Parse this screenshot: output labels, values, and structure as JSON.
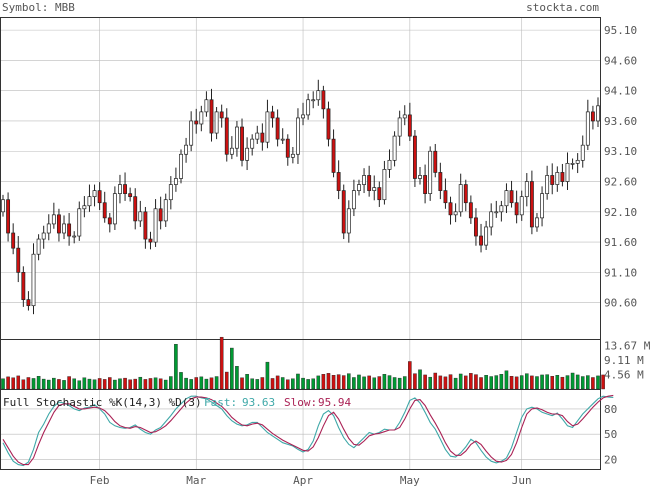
{
  "header": {
    "symbol_label": "Symbol: MBB",
    "site": "stockta.com"
  },
  "colors": {
    "up": "#ffffff",
    "down": "#cc1111",
    "vol_up": "#009933",
    "vol_down": "#cc1111",
    "grid": "#bbbbbb",
    "frame": "#333333",
    "text": "#555555",
    "fast": "#3fa8a8",
    "slow": "#aa2255"
  },
  "chart_data": [
    {
      "type": "candlestick",
      "title": "",
      "ylim": [
        90.0,
        95.3
      ],
      "y_ticks": [
        "95.10",
        "94.60",
        "94.10",
        "93.60",
        "93.10",
        "92.60",
        "92.10",
        "91.60",
        "91.10",
        "90.60"
      ],
      "x_labels": [
        "Feb",
        "Mar",
        "Apr",
        "May",
        "Jun"
      ],
      "x_label_index": [
        19,
        38,
        59,
        80,
        102
      ],
      "start_price": 92.1,
      "closes": [
        92.3,
        91.75,
        91.5,
        91.1,
        90.65,
        90.55,
        91.4,
        91.65,
        91.75,
        91.9,
        92.05,
        91.75,
        91.9,
        91.7,
        91.7,
        92.15,
        92.2,
        92.35,
        92.45,
        92.25,
        92.0,
        91.9,
        92.4,
        92.55,
        92.4,
        92.35,
        91.95,
        92.1,
        91.65,
        91.6,
        92.15,
        91.95,
        92.3,
        92.55,
        92.65,
        93.05,
        93.2,
        93.6,
        93.55,
        93.75,
        93.95,
        93.4,
        93.75,
        93.65,
        93.05,
        93.15,
        93.5,
        92.95,
        93.15,
        93.3,
        93.4,
        93.25,
        93.75,
        93.65,
        93.3,
        93.3,
        93.0,
        93.05,
        93.65,
        93.7,
        93.95,
        93.95,
        94.1,
        93.8,
        93.3,
        92.75,
        92.45,
        91.75,
        92.15,
        92.45,
        92.55,
        92.7,
        92.45,
        92.5,
        92.3,
        92.8,
        92.95,
        93.35,
        93.65,
        93.7,
        93.35,
        92.65,
        92.7,
        92.4,
        93.1,
        92.75,
        92.45,
        92.25,
        92.05,
        92.1,
        92.55,
        92.25,
        92.0,
        91.7,
        91.55,
        91.85,
        92.1,
        92.1,
        92.2,
        92.45,
        92.25,
        92.05,
        92.35,
        92.6,
        91.85,
        92.0,
        92.4,
        92.7,
        92.55,
        92.75,
        92.6,
        92.9,
        92.9,
        92.95,
        93.2,
        93.75,
        93.6,
        93.85
      ],
      "volume": {
        "y_ticks": [
          "13.67 M",
          "9.11 M",
          "4.56 M"
        ],
        "max": 15.0,
        "values": [
          3.2,
          3.8,
          3.5,
          4.1,
          2.9,
          3.6,
          3.3,
          4.0,
          3.1,
          2.8,
          3.4,
          3.0,
          2.7,
          3.9,
          3.2,
          2.6,
          3.5,
          3.1,
          2.9,
          3.3,
          3.0,
          3.6,
          2.8,
          3.2,
          3.4,
          2.9,
          3.1,
          3.7,
          3.0,
          3.3,
          3.5,
          3.2,
          2.8,
          3.9,
          14.0,
          5.2,
          3.4,
          3.0,
          3.6,
          3.8,
          3.1,
          3.5,
          3.9,
          16.2,
          5.3,
          12.8,
          7.1,
          3.5,
          4.6,
          3.2,
          3.0,
          3.6,
          8.4,
          3.3,
          4.1,
          3.6,
          2.9,
          3.2,
          4.7,
          3.4,
          3.0,
          3.2,
          4.1,
          4.6,
          4.9,
          4.3,
          4.5,
          4.2,
          4.8,
          3.6,
          4.4,
          3.8,
          4.1,
          3.5,
          3.9,
          4.6,
          4.2,
          3.6,
          3.4,
          3.9,
          8.6,
          4.8,
          6.0,
          4.4,
          3.7,
          5.0,
          4.1,
          3.8,
          4.5,
          3.4,
          4.7,
          4.1,
          4.9,
          4.5,
          3.6,
          4.3,
          3.9,
          4.2,
          4.6,
          5.7,
          4.0,
          3.8,
          4.2,
          4.8,
          4.1,
          3.9,
          4.4,
          4.5,
          4.0,
          4.3,
          3.7,
          4.2,
          5.0,
          4.4,
          3.9,
          4.2,
          3.6,
          4.1,
          4.4
        ]
      }
    },
    {
      "type": "line",
      "title": "Full Stochastic %K(14,3) %D(3)",
      "ylim": [
        10,
        100
      ],
      "y_ticks": [
        "80",
        "50",
        "20"
      ],
      "series": [
        {
          "name": "Fast",
          "last": "93.63",
          "values": [
            40,
            28,
            18,
            14,
            13,
            17,
            32,
            52,
            62,
            74,
            83,
            88,
            87,
            84,
            80,
            78,
            81,
            82,
            85,
            80,
            74,
            64,
            60,
            58,
            57,
            58,
            61,
            56,
            52,
            50,
            55,
            58,
            65,
            72,
            80,
            86,
            92,
            95,
            95,
            93,
            92,
            88,
            84,
            80,
            72,
            66,
            62,
            60,
            61,
            64,
            64,
            58,
            52,
            48,
            44,
            40,
            38,
            36,
            32,
            29,
            32,
            42,
            60,
            74,
            78,
            72,
            58,
            46,
            38,
            34,
            40,
            46,
            52,
            50,
            52,
            56,
            55,
            55,
            64,
            76,
            90,
            93,
            87,
            76,
            64,
            56,
            44,
            32,
            24,
            23,
            28,
            35,
            44,
            40,
            31,
            23,
            18,
            16,
            18,
            22,
            34,
            52,
            70,
            80,
            82,
            80,
            76,
            74,
            72,
            75,
            68,
            60,
            58,
            66,
            74,
            80,
            86,
            92,
            95,
            94,
            93.63
          ]
        },
        {
          "name": "Slow",
          "last": "95.94",
          "values": [
            44,
            34,
            24,
            17,
            14,
            14,
            22,
            38,
            52,
            64,
            76,
            84,
            86,
            86,
            83,
            80,
            80,
            81,
            82,
            81,
            78,
            72,
            65,
            60,
            58,
            57,
            59,
            58,
            55,
            52,
            53,
            56,
            60,
            66,
            73,
            80,
            87,
            92,
            94,
            94,
            93,
            91,
            87,
            83,
            77,
            70,
            65,
            61,
            60,
            62,
            63,
            61,
            56,
            51,
            47,
            43,
            40,
            37,
            34,
            31,
            30,
            35,
            46,
            60,
            72,
            76,
            68,
            56,
            45,
            38,
            37,
            42,
            48,
            50,
            51,
            53,
            55,
            55,
            58,
            68,
            80,
            90,
            91,
            84,
            73,
            63,
            52,
            40,
            30,
            25,
            25,
            30,
            38,
            42,
            38,
            30,
            23,
            18,
            17,
            19,
            26,
            40,
            58,
            74,
            80,
            81,
            79,
            76,
            74,
            74,
            72,
            65,
            60,
            62,
            68,
            75,
            82,
            88,
            93,
            95,
            95.94
          ]
        }
      ]
    }
  ],
  "stoch_labels": {
    "title": "Full Stochastic %K(14,3) %D(3)",
    "fast_label": "Fast:",
    "fast_value": "93.63",
    "slow_label": "Slow:",
    "slow_value": "95.94"
  }
}
